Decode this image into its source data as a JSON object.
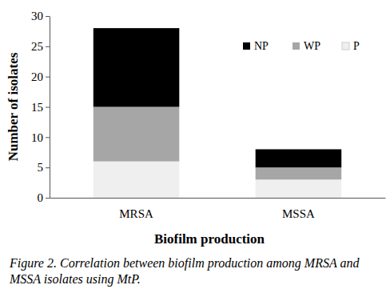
{
  "chart_data": {
    "type": "bar",
    "stacked": true,
    "caption": "Figure 2. Correlation between biofilm production among MRSA and MSSA isolates using MtP.",
    "x_label": "Biofilm production",
    "y_label": "Number of isolates",
    "categories": [
      "MRSA",
      "MSSA"
    ],
    "series": [
      {
        "name": "P",
        "color": "#efefef",
        "values": [
          6,
          3
        ]
      },
      {
        "name": "WP",
        "color": "#a6a6a6",
        "values": [
          9,
          2
        ]
      },
      {
        "name": "NP",
        "color": "#000000",
        "values": [
          13,
          3
        ]
      }
    ],
    "ylim": [
      0,
      30
    ],
    "yticks": [
      0,
      5,
      10,
      15,
      20,
      25,
      30
    ],
    "grid": false,
    "legend": "upper right"
  }
}
